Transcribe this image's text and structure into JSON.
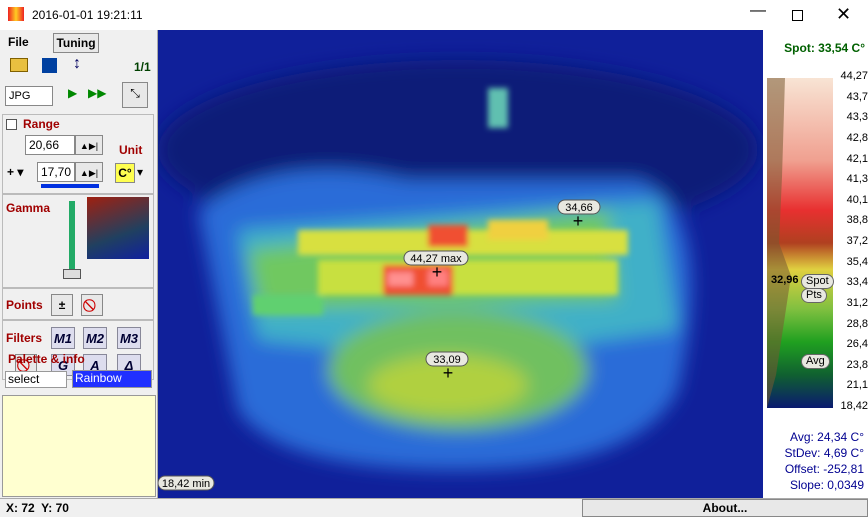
{
  "window": {
    "title": "2016-01-01 19:21:11"
  },
  "tabs": [
    "File",
    "Tuning"
  ],
  "page_counter": "1/1",
  "format": "JPG",
  "range": {
    "label": "Range",
    "top": "20,66",
    "bottom": "17,70",
    "unit_label": "Unit",
    "unit": "C°"
  },
  "gamma": {
    "label": "Gamma"
  },
  "points": {
    "label": "Points",
    "add": "±"
  },
  "filters": {
    "label": "Filters",
    "buttons": [
      "M1",
      "M2",
      "M3"
    ],
    "modes": [
      "G",
      "A"
    ]
  },
  "palette": {
    "label": "Palette & info",
    "select": "select",
    "name": "Rainbow"
  },
  "image": {
    "markers": [
      {
        "label": "34,66"
      },
      {
        "label": "44,27 max"
      },
      {
        "label": "33,09"
      }
    ],
    "min_label": "18,42 min"
  },
  "scale": {
    "spot": "Spot: 33,54 C°",
    "ticks": [
      "44,27",
      "43,7",
      "43,3",
      "42,8",
      "42,1",
      "41,3",
      "40,1",
      "38,8",
      "37,2",
      "35,4",
      "33,4",
      "31,2",
      "28,8",
      "26,4",
      "23,8",
      "21,1",
      "18,42"
    ],
    "cursor_value": "32,96",
    "tags": [
      "Spot",
      "Pts",
      "Avg"
    ]
  },
  "stats": [
    "Avg: 24,34 C°",
    "StDev: 4,69 C°",
    "Offset: -252,81",
    "Slope: 0,0349"
  ],
  "status": {
    "coords": "X: 72  Y: 70",
    "about": "About..."
  }
}
